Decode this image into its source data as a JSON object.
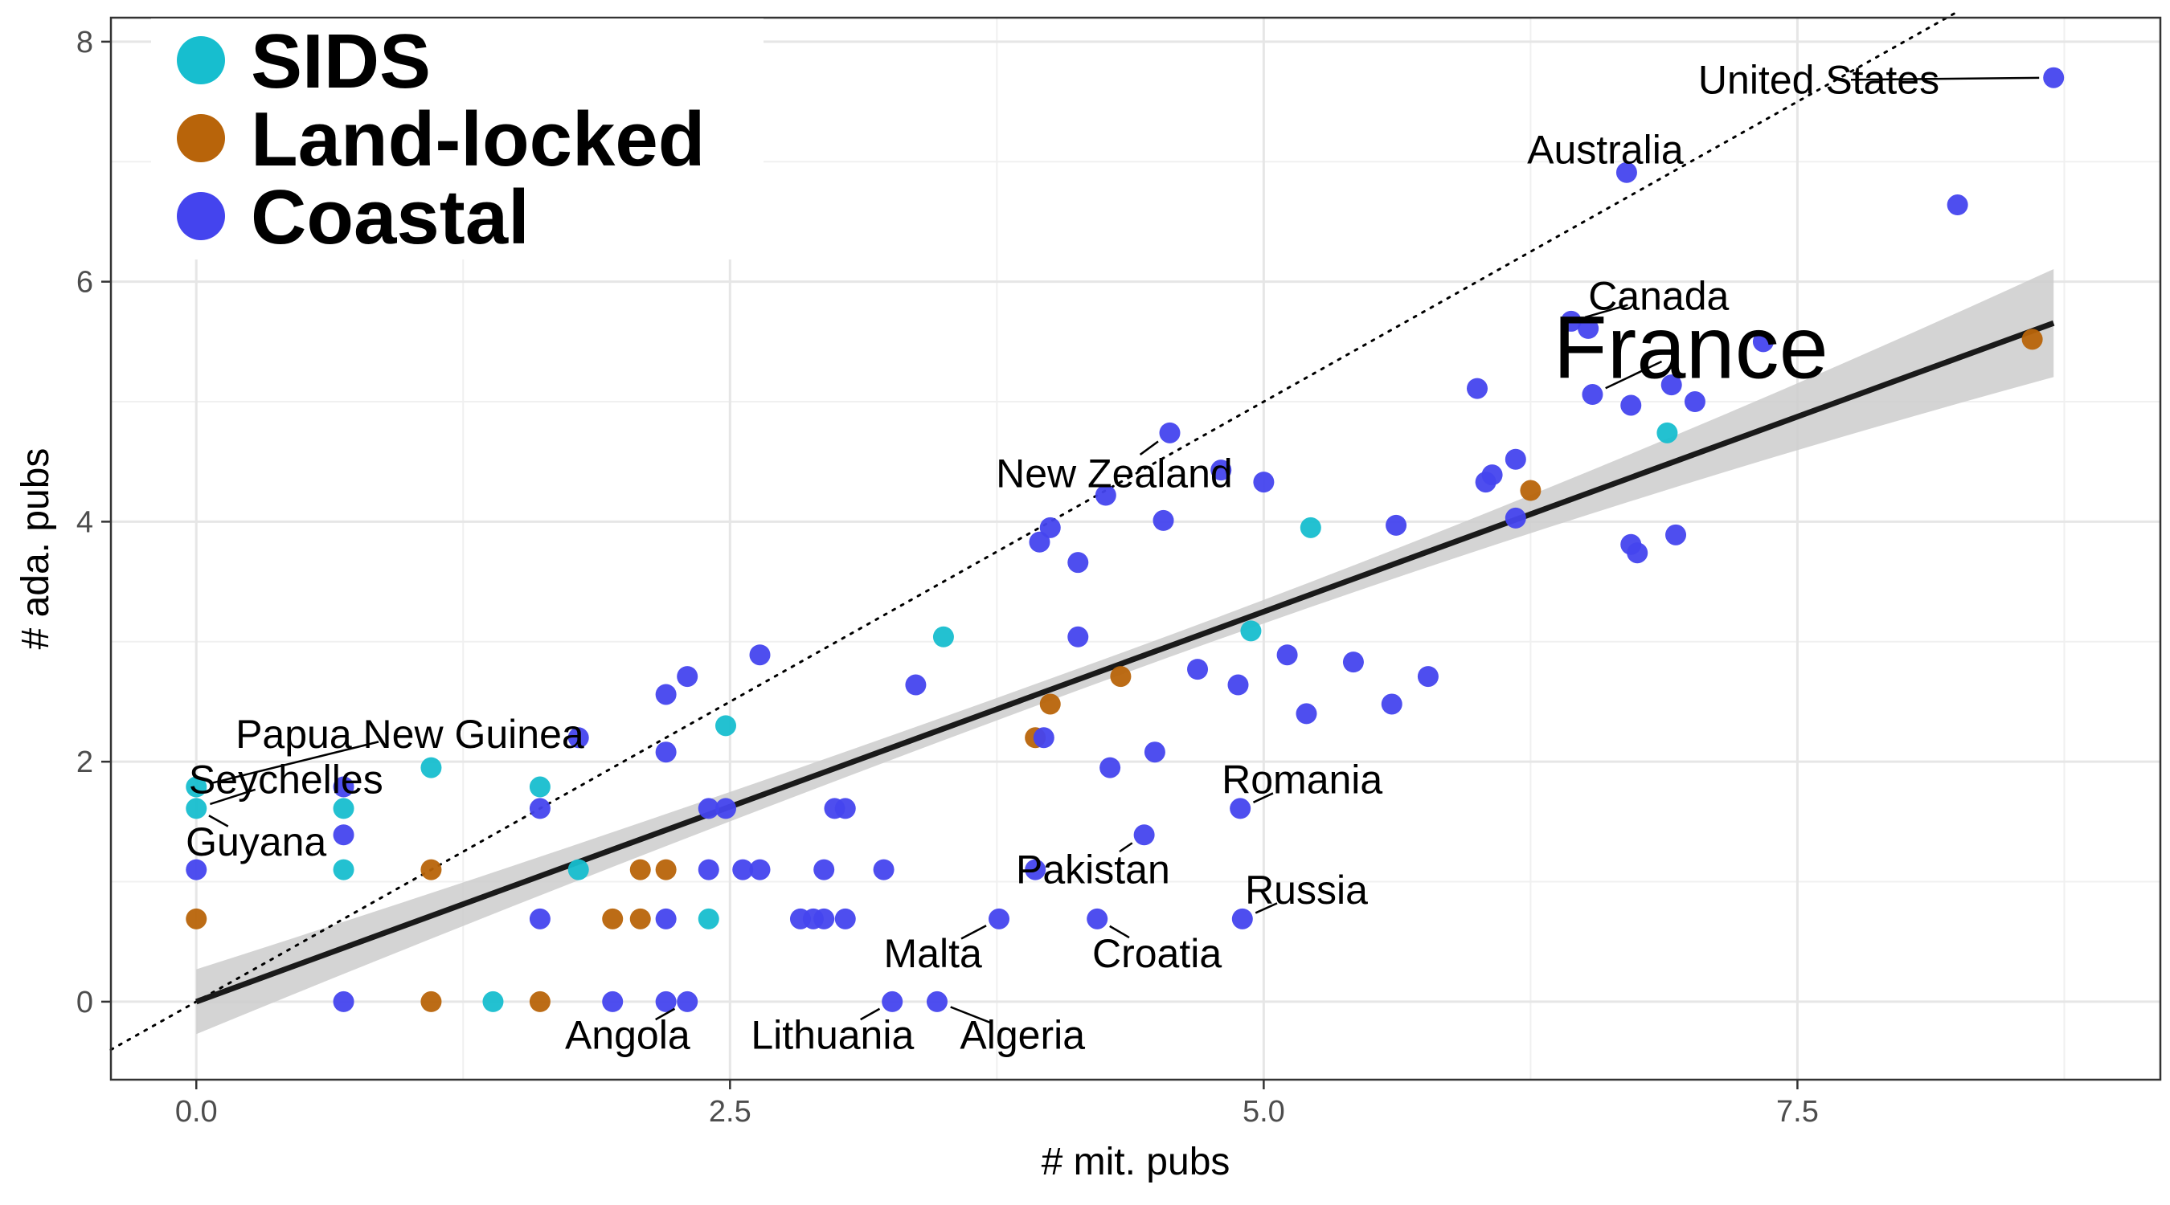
{
  "chart_data": {
    "type": "scatter",
    "xlabel": "# mit. pubs",
    "ylabel": "# ada. pubs",
    "xlim": [
      -0.4,
      9.2
    ],
    "ylim": [
      -0.65,
      8.2
    ],
    "xticks": [
      "0.0",
      "2.5",
      "5.0",
      "7.5"
    ],
    "xtick_values": [
      0,
      2.5,
      5,
      7.5
    ],
    "yticks": [
      "0",
      "2",
      "4",
      "6",
      "8"
    ],
    "ytick_values": [
      0,
      2,
      4,
      6,
      8
    ],
    "grid": true,
    "legend_position": "top-left",
    "legend": [
      {
        "name": "SIDS",
        "color": "#17becf"
      },
      {
        "name": "Land-locked",
        "color": "#b8640a"
      },
      {
        "name": "Coastal",
        "color": "#4444ee"
      }
    ],
    "reference_line": {
      "type": "y=x",
      "style": "dotted"
    },
    "regression": {
      "intercept": 0.0,
      "slope": 0.65,
      "ci_low_at_0": -0.27,
      "ci_high_at_0": 0.27,
      "ci_low_at_end": 5.2,
      "ci_high_at_end": 6.1,
      "x_end": 8.7
    },
    "series": [
      {
        "name": "SIDS",
        "color": "#17becf",
        "points": [
          [
            0,
            1.79
          ],
          [
            0,
            1.61
          ],
          [
            0.69,
            1.61
          ],
          [
            0.69,
            1.1
          ],
          [
            1.1,
            1.95
          ],
          [
            1.61,
            1.79
          ],
          [
            1.79,
            1.1
          ],
          [
            1.39,
            0
          ],
          [
            2.4,
            0.69
          ],
          [
            2.48,
            2.3
          ],
          [
            3.5,
            3.04
          ],
          [
            5.22,
            3.95
          ],
          [
            6.89,
            4.74
          ],
          [
            4.94,
            3.09
          ]
        ]
      },
      {
        "name": "Land-locked",
        "color": "#b8640a",
        "points": [
          [
            0,
            0.69
          ],
          [
            1.1,
            1.1
          ],
          [
            1.1,
            0
          ],
          [
            1.61,
            0
          ],
          [
            1.95,
            0.69
          ],
          [
            2.08,
            0.69
          ],
          [
            2.08,
            1.1
          ],
          [
            2.2,
            1.1
          ],
          [
            3.93,
            2.2
          ],
          [
            4.33,
            2.71
          ],
          [
            6.25,
            4.26
          ],
          [
            8.6,
            5.52
          ],
          [
            4.0,
            2.48
          ]
        ]
      },
      {
        "name": "Coastal",
        "color": "#4444ee",
        "points": [
          [
            0,
            1.1
          ],
          [
            0.69,
            1.79
          ],
          [
            0.69,
            1.39
          ],
          [
            0.69,
            0
          ],
          [
            1.61,
            1.61
          ],
          [
            1.61,
            0.69
          ],
          [
            1.79,
            2.2
          ],
          [
            1.95,
            0
          ],
          [
            2.2,
            2.56
          ],
          [
            2.2,
            2.08
          ],
          [
            2.2,
            0.69
          ],
          [
            2.2,
            0
          ],
          [
            2.3,
            2.71
          ],
          [
            2.3,
            0
          ],
          [
            2.4,
            1.61
          ],
          [
            2.4,
            1.1
          ],
          [
            2.48,
            1.61
          ],
          [
            2.56,
            1.1
          ],
          [
            2.64,
            1.1
          ],
          [
            2.64,
            2.89
          ],
          [
            2.83,
            0.69
          ],
          [
            2.89,
            0.69
          ],
          [
            2.94,
            0.69
          ],
          [
            2.94,
            1.1
          ],
          [
            2.99,
            1.61
          ],
          [
            3.04,
            1.61
          ],
          [
            3.04,
            0.69
          ],
          [
            3.22,
            1.1
          ],
          [
            3.26,
            0
          ],
          [
            3.37,
            2.64
          ],
          [
            3.47,
            0
          ],
          [
            3.76,
            0.69
          ],
          [
            3.93,
            1.1
          ],
          [
            3.95,
            3.83
          ],
          [
            3.97,
            2.2
          ],
          [
            4.0,
            3.95
          ],
          [
            4.13,
            3.66
          ],
          [
            4.13,
            3.04
          ],
          [
            4.22,
            0.69
          ],
          [
            4.26,
            4.22
          ],
          [
            4.28,
            1.95
          ],
          [
            4.44,
            1.39
          ],
          [
            4.49,
            2.08
          ],
          [
            4.53,
            4.01
          ],
          [
            4.56,
            4.74
          ],
          [
            4.69,
            2.77
          ],
          [
            4.8,
            4.43
          ],
          [
            4.88,
            2.64
          ],
          [
            4.89,
            1.61
          ],
          [
            4.9,
            0.69
          ],
          [
            5.0,
            4.33
          ],
          [
            5.11,
            2.89
          ],
          [
            5.2,
            2.4
          ],
          [
            5.42,
            2.83
          ],
          [
            5.6,
            2.48
          ],
          [
            5.62,
            3.97
          ],
          [
            5.77,
            2.71
          ],
          [
            6.0,
            5.11
          ],
          [
            6.04,
            4.33
          ],
          [
            6.07,
            4.39
          ],
          [
            6.18,
            4.03
          ],
          [
            6.18,
            4.52
          ],
          [
            6.44,
            5.67
          ],
          [
            6.52,
            5.61
          ],
          [
            6.54,
            5.06
          ],
          [
            6.7,
            6.91
          ],
          [
            6.72,
            4.97
          ],
          [
            6.72,
            3.81
          ],
          [
            6.75,
            3.74
          ],
          [
            6.91,
            5.14
          ],
          [
            6.93,
            3.89
          ],
          [
            7.02,
            5.0
          ],
          [
            7.34,
            5.5
          ],
          [
            8.25,
            6.64
          ],
          [
            8.7,
            7.7
          ]
        ]
      }
    ],
    "annotations": [
      {
        "text": "United States",
        "x": 8.7,
        "y": 7.7,
        "tx": 7.6,
        "ty": 7.68,
        "big": false
      },
      {
        "text": "Australia",
        "x": 6.7,
        "y": 6.91,
        "tx": 6.6,
        "ty": 7.1,
        "big": false
      },
      {
        "text": "Canada",
        "x": 6.44,
        "y": 5.67,
        "tx": 6.85,
        "ty": 5.88,
        "big": false
      },
      {
        "text": "France",
        "x": 6.54,
        "y": 5.06,
        "tx": 7.0,
        "ty": 5.45,
        "big": true
      },
      {
        "text": "New Zealand",
        "x": 4.56,
        "y": 4.74,
        "tx": 4.3,
        "ty": 4.4,
        "big": false
      },
      {
        "text": "Papua New Guinea",
        "x": 0,
        "y": 1.79,
        "tx": 1.0,
        "ty": 2.23,
        "big": false
      },
      {
        "text": "Seychelles",
        "x": 0,
        "y": 1.61,
        "tx": 0.42,
        "ty": 1.85,
        "big": false
      },
      {
        "text": "Guyana",
        "x": 0,
        "y": 1.61,
        "tx": 0.28,
        "ty": 1.33,
        "big": false
      },
      {
        "text": "Romania",
        "x": 4.89,
        "y": 1.61,
        "tx": 5.18,
        "ty": 1.85,
        "big": false
      },
      {
        "text": "Pakistan",
        "x": 4.44,
        "y": 1.39,
        "tx": 4.2,
        "ty": 1.1,
        "big": false
      },
      {
        "text": "Russia",
        "x": 4.9,
        "y": 0.69,
        "tx": 5.2,
        "ty": 0.93,
        "big": false
      },
      {
        "text": "Malta",
        "x": 3.76,
        "y": 0.69,
        "tx": 3.45,
        "ty": 0.4,
        "big": false
      },
      {
        "text": "Croatia",
        "x": 4.22,
        "y": 0.69,
        "tx": 4.5,
        "ty": 0.4,
        "big": false
      },
      {
        "text": "Angola",
        "x": 2.3,
        "y": 0,
        "tx": 2.02,
        "ty": -0.28,
        "big": false
      },
      {
        "text": "Lithuania",
        "x": 3.26,
        "y": 0,
        "tx": 2.98,
        "ty": -0.28,
        "big": false
      },
      {
        "text": "Algeria",
        "x": 3.47,
        "y": 0,
        "tx": 3.87,
        "ty": -0.28,
        "big": false
      }
    ]
  }
}
